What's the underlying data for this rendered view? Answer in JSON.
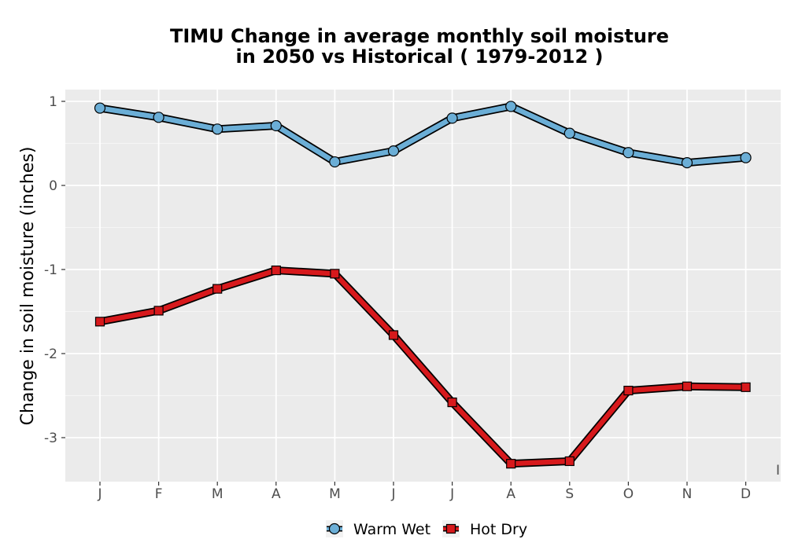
{
  "chart_data": {
    "type": "line",
    "title": [
      "TIMU  Change in average monthly soil moisture",
      "in 2050 vs Historical ( 1979-2012 )"
    ],
    "xlabel": "",
    "ylabel": "Change in soil moisture (inches)",
    "categories": [
      "J",
      "F",
      "M",
      "A",
      "M",
      "J",
      "J",
      "A",
      "S",
      "O",
      "N",
      "D"
    ],
    "ylim": [
      -3.5,
      1.15
    ],
    "yticks": [
      1,
      0,
      -1,
      -2,
      -3
    ],
    "ytick_labels": [
      "1",
      "0",
      "-1",
      "-2",
      "-3"
    ],
    "grid": true,
    "legend_position": "bottom",
    "stray_label": "I",
    "series": [
      {
        "name": "Warm Wet",
        "color": "#6BAED6",
        "marker": "circle",
        "values": [
          0.92,
          0.81,
          0.67,
          0.71,
          0.28,
          0.41,
          0.8,
          0.94,
          0.62,
          0.39,
          0.27,
          0.33
        ]
      },
      {
        "name": "Hot Dry",
        "color": "#D7191C",
        "marker": "square",
        "values": [
          -1.62,
          -1.49,
          -1.23,
          -1.01,
          -1.05,
          -1.78,
          -2.58,
          -3.31,
          -3.28,
          -2.44,
          -2.39,
          -2.4
        ]
      }
    ]
  }
}
